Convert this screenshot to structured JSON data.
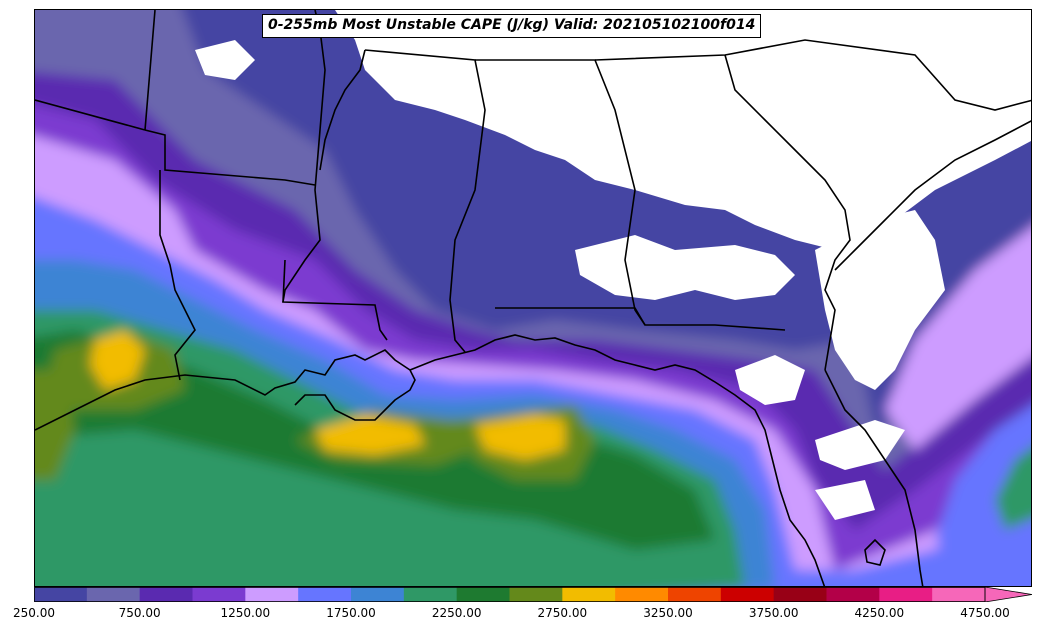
{
  "title": "0-255mb Most Unstable CAPE (J/kg) Valid: 202105102100f014",
  "map": {
    "field": "Most Unstable CAPE",
    "units": "J/kg",
    "region": "US Gulf Coast and Southeast",
    "basemap_features": [
      "state-borders",
      "coastlines"
    ],
    "regions": [
      {
        "name": "gulf-offshore",
        "cape_range": [
          1750,
          2500
        ]
      },
      {
        "name": "louisiana-coast-offshore",
        "cape_range": [
          2750,
          3000
        ]
      },
      {
        "name": "northeast-texas",
        "cape_range": [
          2500,
          3000
        ]
      },
      {
        "name": "southeast-states-north",
        "cape_range": [
          0,
          250
        ]
      },
      {
        "name": "georgia-florida-inland",
        "cape_range": [
          0,
          250
        ]
      },
      {
        "name": "atlantic-offshore",
        "cape_range": [
          1000,
          2000
        ]
      }
    ]
  },
  "colorbar": {
    "levels": [
      250,
      500,
      750,
      1000,
      1250,
      1500,
      1750,
      2000,
      2250,
      2500,
      2750,
      3000,
      3250,
      3500,
      3750,
      4000,
      4250,
      4500,
      4750
    ],
    "colors": [
      "#4545a3",
      "#6a66ae",
      "#5a2ab0",
      "#7b3bd0",
      "#cd9cff",
      "#6675ff",
      "#3d84d4",
      "#2f9866",
      "#1e7a30",
      "#64891b",
      "#f2bc00",
      "#ff8a00",
      "#ee4400",
      "#cc0000",
      "#980016",
      "#b30048",
      "#e81e85",
      "#f667b9"
    ],
    "extend": "max",
    "tick_labels": [
      "250.00",
      "750.00",
      "1250.00",
      "1750.00",
      "2250.00",
      "2750.00",
      "3250.00",
      "3750.00",
      "4250.00",
      "4750.00"
    ]
  }
}
